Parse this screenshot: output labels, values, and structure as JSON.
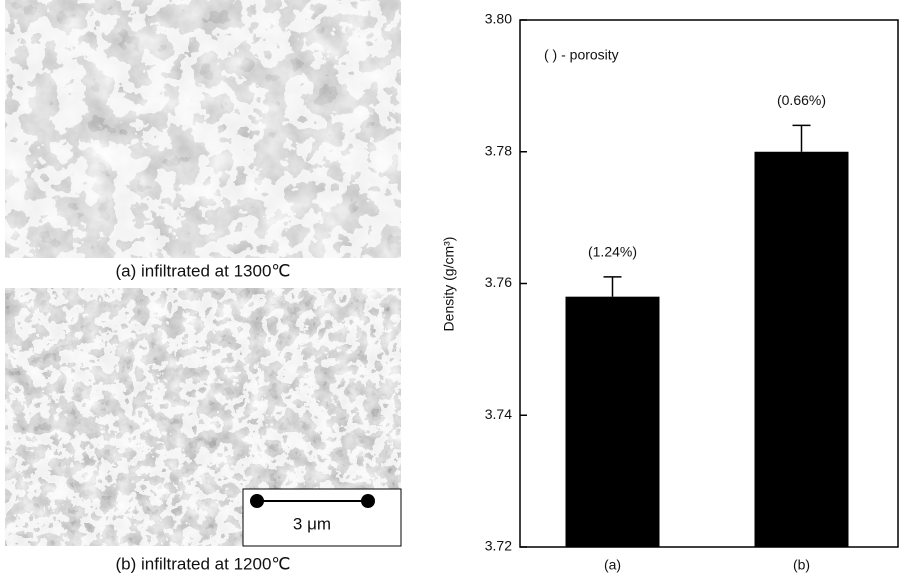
{
  "images": [
    {
      "caption": "(a) infiltrated at 1300℃"
    },
    {
      "caption": "(b) infiltrated at 1200℃",
      "scale_bar": "3 μm"
    }
  ],
  "chart_data": {
    "type": "bar",
    "ylabel": "Density (g/cm³)",
    "annotation": "( ) - porosity",
    "categories": [
      "(a)",
      "(b)"
    ],
    "values": [
      3.758,
      3.78
    ],
    "errors": [
      0.003,
      0.004
    ],
    "bar_labels": [
      "(1.24%)",
      "(0.66%)"
    ],
    "color": "#000000",
    "ylim": [
      3.72,
      3.8
    ],
    "yticks": [
      3.72,
      3.74,
      3.76,
      3.78,
      {
        "value": 3.8,
        "label": "3.80"
      }
    ]
  }
}
